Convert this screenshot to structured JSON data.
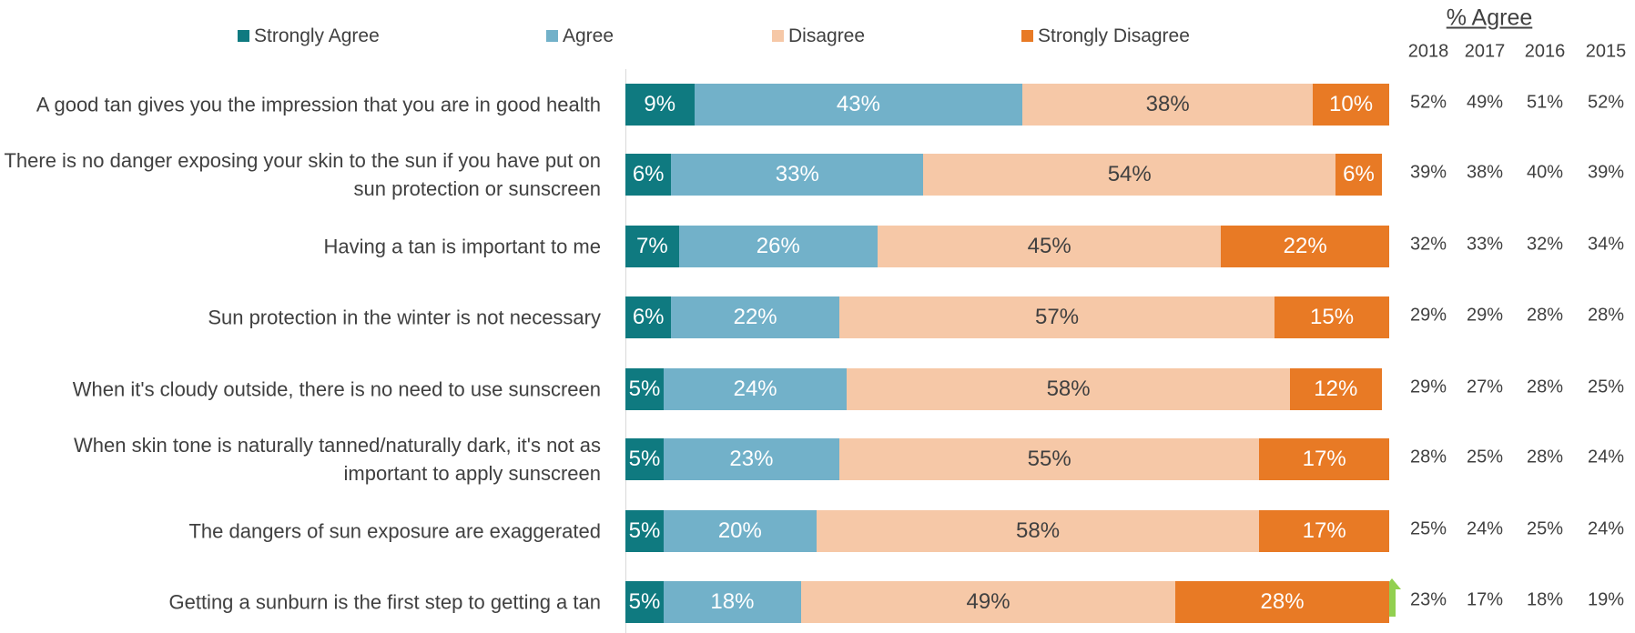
{
  "chart_data": {
    "type": "bar",
    "orientation": "horizontal",
    "stacked": true,
    "legend": "top",
    "xlim": [
      0,
      100
    ],
    "categories": [
      "A good tan gives you the impression that you are in good health",
      "There is no danger exposing your skin to the sun if you have put on sun protection or sunscreen",
      "Having a tan is important to me",
      "Sun protection in the winter is not necessary",
      "When it's cloudy outside, there is no need to use sunscreen",
      "When skin tone is naturally tanned/naturally dark, it's not as important to apply sunscreen",
      "The dangers of sun exposure are exaggerated",
      "Getting a sunburn is the first step to getting a tan"
    ],
    "series": [
      {
        "name": "Strongly Agree",
        "color": "#0f7a80",
        "label_color": "#ffffff",
        "values": [
          9,
          6,
          7,
          6,
          5,
          5,
          5,
          5
        ],
        "value_labels": [
          "9%",
          "6%",
          "7%",
          "6%",
          "5%",
          "5%",
          "5%",
          "5%"
        ]
      },
      {
        "name": "Agree",
        "color": "#72b1c9",
        "label_color": "#ffffff",
        "values": [
          43,
          33,
          26,
          22,
          24,
          23,
          20,
          18
        ],
        "value_labels": [
          "43%",
          "33%",
          "26%",
          "22%",
          "24%",
          "23%",
          "20%",
          "18%"
        ]
      },
      {
        "name": "Disagree",
        "color": "#f6c8a7",
        "label_color": "#404040",
        "values": [
          38,
          54,
          45,
          57,
          58,
          55,
          58,
          49
        ],
        "value_labels": [
          "38%",
          "54%",
          "45%",
          "57%",
          "58%",
          "55%",
          "58%",
          "49%"
        ]
      },
      {
        "name": "Strongly Disagree",
        "color": "#e87a25",
        "label_color": "#ffffff",
        "values": [
          10,
          6,
          22,
          15,
          12,
          17,
          17,
          28
        ],
        "value_labels": [
          "10%",
          "6%",
          "22%",
          "15%",
          "12%",
          "17%",
          "17%",
          "28%"
        ]
      }
    ],
    "table": {
      "title": "% Agree",
      "columns": [
        "2018",
        "2017",
        "2016",
        "2015"
      ],
      "rows": [
        [
          "52%",
          "49%",
          "51%",
          "52%"
        ],
        [
          "39%",
          "38%",
          "40%",
          "39%"
        ],
        [
          "32%",
          "33%",
          "32%",
          "34%"
        ],
        [
          "29%",
          "29%",
          "28%",
          "28%"
        ],
        [
          "29%",
          "27%",
          "28%",
          "25%"
        ],
        [
          "28%",
          "25%",
          "28%",
          "24%"
        ],
        [
          "25%",
          "24%",
          "25%",
          "24%"
        ],
        [
          "23%",
          "17%",
          "18%",
          "19%"
        ]
      ]
    }
  }
}
